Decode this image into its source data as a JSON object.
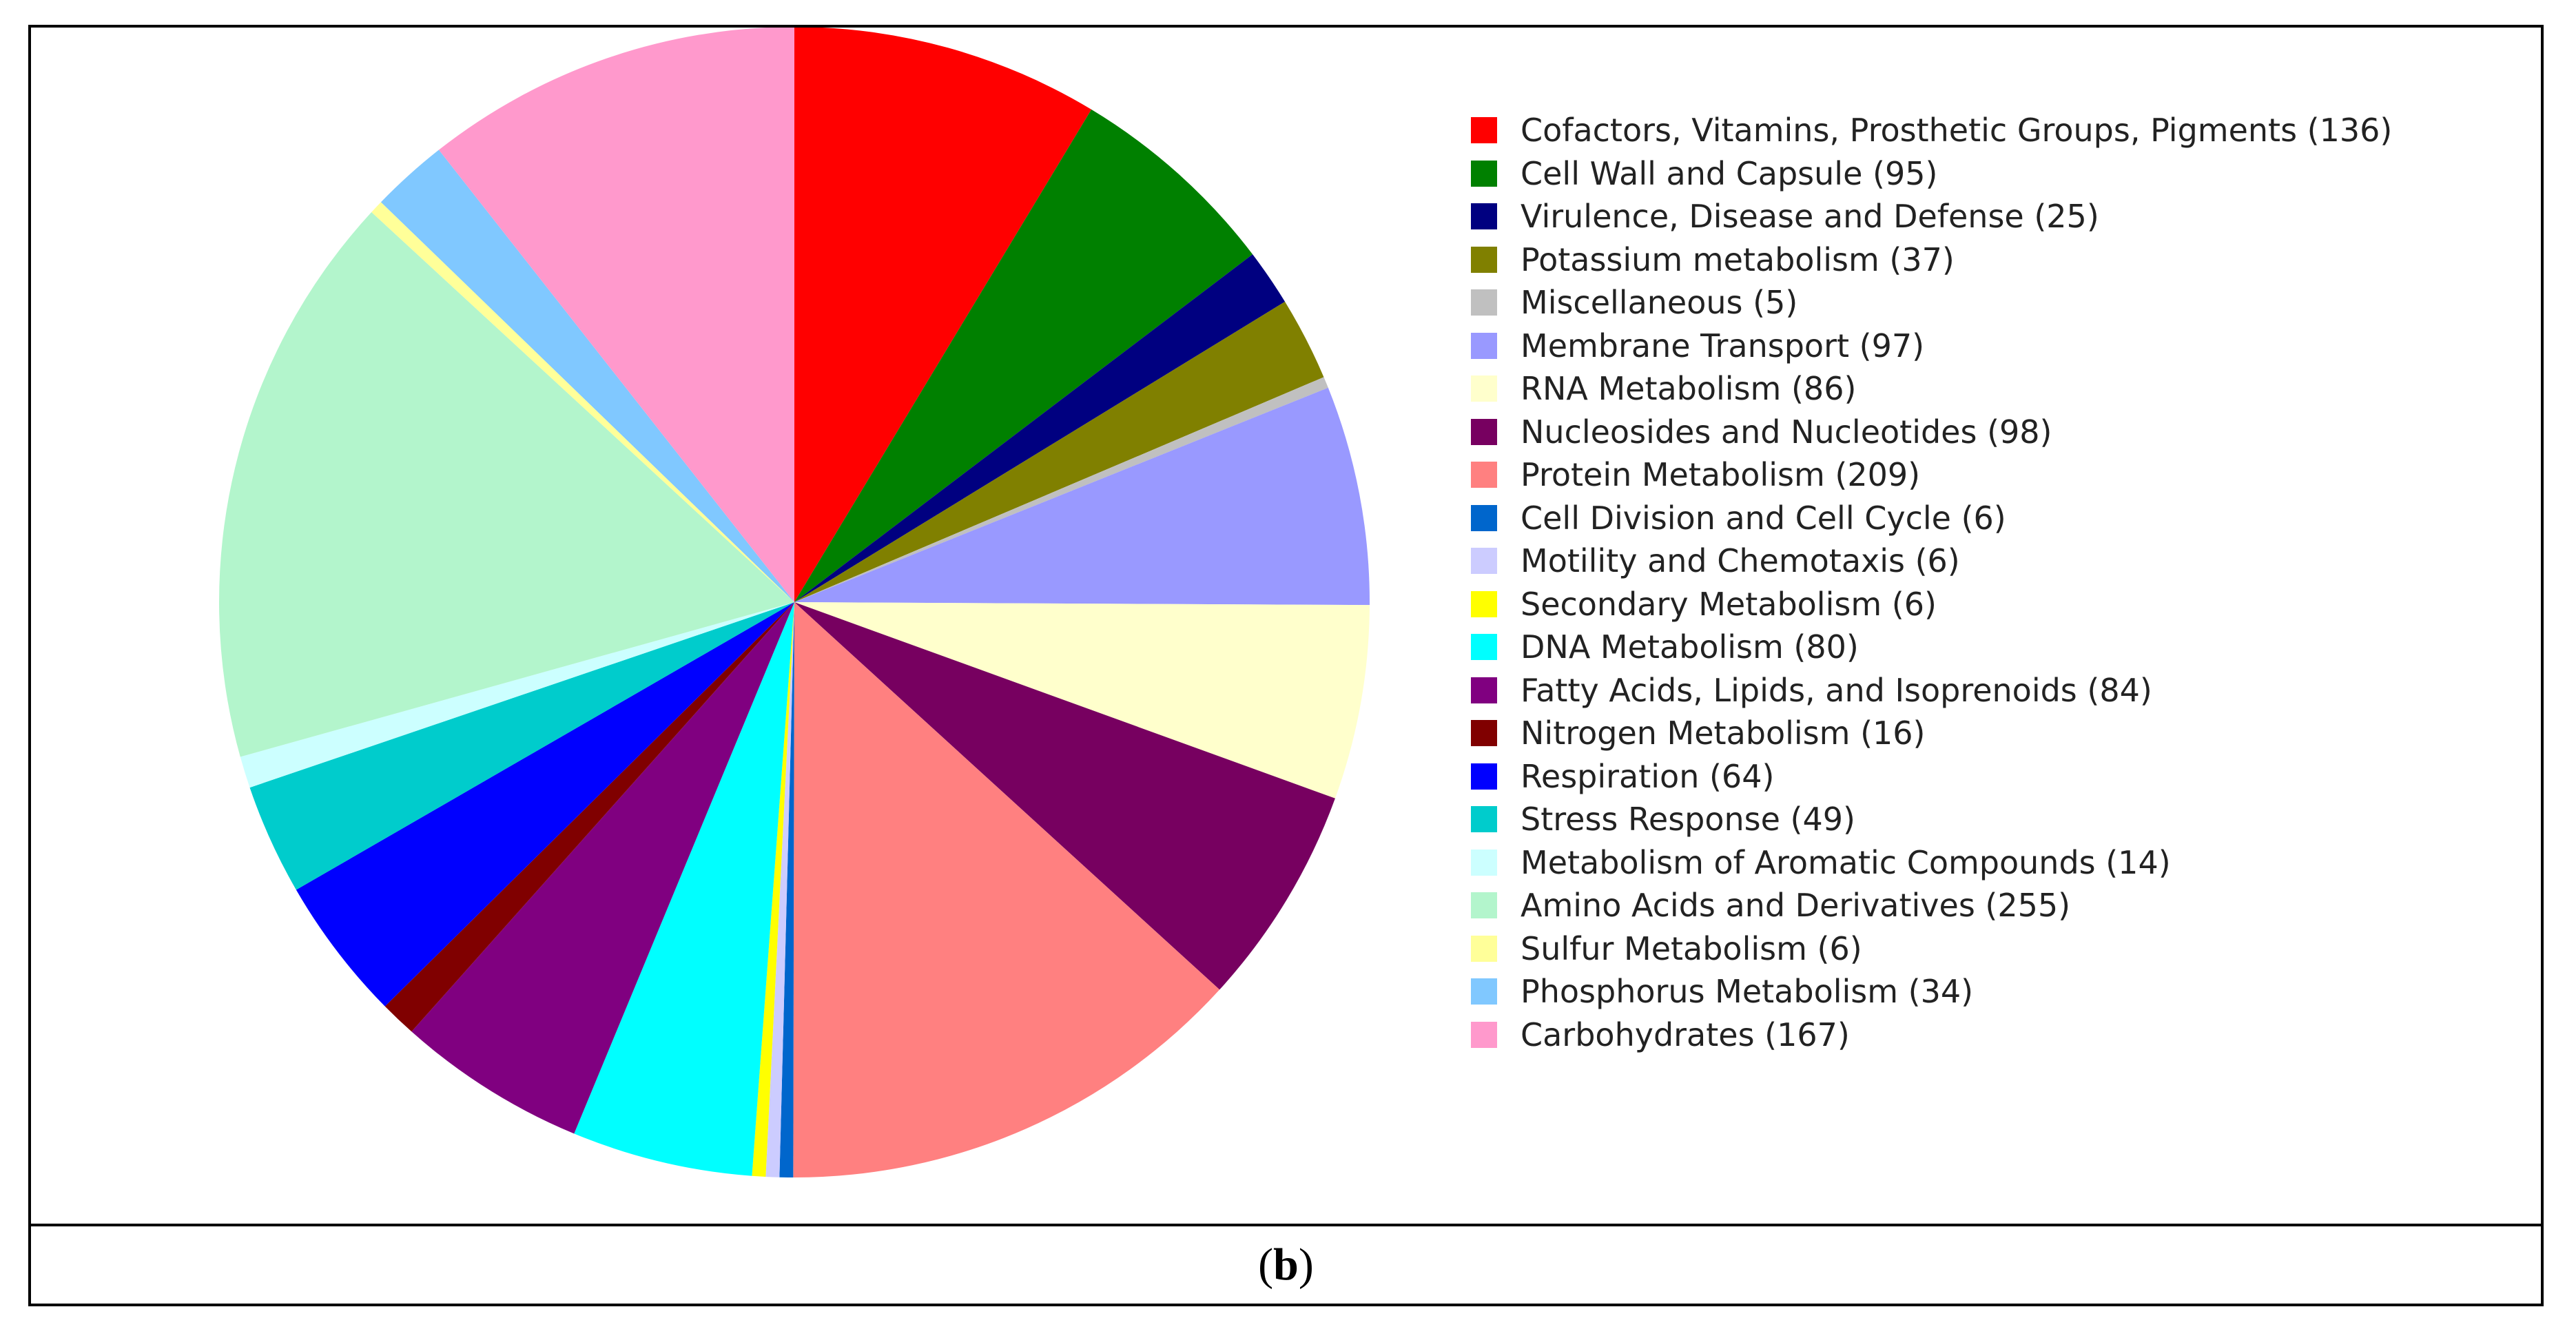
{
  "chart_data": {
    "type": "pie",
    "title": "",
    "caption_label": "b",
    "slices": [
      {
        "label": "Cofactors, Vitamins, Prosthetic Groups, Pigments",
        "value": 136,
        "color": "#FF0000",
        "legend_text": "Cofactors, Vitamins, Prosthetic Groups, Pigments (136)"
      },
      {
        "label": "Cell Wall and Capsule",
        "value": 95,
        "color": "#008000",
        "legend_text": "Cell Wall and Capsule (95)"
      },
      {
        "label": "Virulence, Disease and Defense",
        "value": 25,
        "color": "#000080",
        "legend_text": "Virulence, Disease and Defense (25)"
      },
      {
        "label": "Potassium metabolism",
        "value": 37,
        "color": "#808000",
        "legend_text": "Potassium metabolism (37)"
      },
      {
        "label": "Miscellaneous",
        "value": 5,
        "color": "#C0C0C0",
        "legend_text": "Miscellaneous (5)"
      },
      {
        "label": "Membrane Transport",
        "value": 97,
        "color": "#9999FF",
        "legend_text": "Membrane Transport (97)"
      },
      {
        "label": "RNA Metabolism",
        "value": 86,
        "color": "#FFFFCC",
        "legend_text": "RNA Metabolism (86)"
      },
      {
        "label": "Nucleosides and Nucleotides",
        "value": 98,
        "color": "#770060",
        "legend_text": "Nucleosides and Nucleotides (98)"
      },
      {
        "label": "Protein Metabolism",
        "value": 209,
        "color": "#FF8080",
        "legend_text": "Protein Metabolism (209)"
      },
      {
        "label": "Cell Division and Cell Cycle",
        "value": 6,
        "color": "#0066CC",
        "legend_text": "Cell Division and Cell Cycle (6)"
      },
      {
        "label": "Motility and Chemotaxis",
        "value": 6,
        "color": "#CCCCFF",
        "legend_text": "Motility and Chemotaxis (6)"
      },
      {
        "label": "Secondary Metabolism",
        "value": 6,
        "color": "#FFFF00",
        "legend_text": "Secondary Metabolism (6)"
      },
      {
        "label": "DNA Metabolism",
        "value": 80,
        "color": "#00FFFF",
        "legend_text": "DNA Metabolism (80)"
      },
      {
        "label": "Fatty Acids, Lipids, and Isoprenoids",
        "value": 84,
        "color": "#800080",
        "legend_text": "Fatty Acids, Lipids, and Isoprenoids (84)"
      },
      {
        "label": "Nitrogen Metabolism",
        "value": 16,
        "color": "#800000",
        "legend_text": "Nitrogen Metabolism (16)"
      },
      {
        "label": "Respiration",
        "value": 64,
        "color": "#0000FF",
        "legend_text": "Respiration (64)"
      },
      {
        "label": "Stress Response",
        "value": 49,
        "color": "#00CCCC",
        "legend_text": "Stress Response (49)"
      },
      {
        "label": "Metabolism of Aromatic Compounds",
        "value": 14,
        "color": "#CCFFFF",
        "legend_text": "Metabolism of Aromatic Compounds (14)"
      },
      {
        "label": "Amino Acids and Derivatives",
        "value": 255,
        "color": "#B3F5CC",
        "legend_text": "Amino Acids and Derivatives (255)"
      },
      {
        "label": "Sulfur Metabolism",
        "value": 6,
        "color": "#FFFF99",
        "legend_text": "Sulfur Metabolism (6)"
      },
      {
        "label": "Phosphorus Metabolism",
        "value": 34,
        "color": "#80C8FF",
        "legend_text": "Phosphorus Metabolism (34)"
      },
      {
        "label": "Carbohydrates",
        "value": 167,
        "color": "#FF99CC",
        "legend_text": "Carbohydrates (167)"
      }
    ],
    "start_angle": "12 o'clock",
    "direction": "clockwise",
    "legend_position": "right"
  }
}
